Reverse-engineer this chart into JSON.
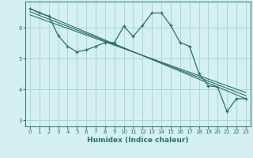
{
  "xlabel": "Humidex (Indice chaleur)",
  "ylabel": "",
  "background_color": "#d4f0f0",
  "grid_color": "#aad8d8",
  "line_color": "#2e6e6e",
  "xlim": [
    -0.5,
    23.5
  ],
  "ylim": [
    2.8,
    6.85
  ],
  "yticks": [
    3,
    4,
    5,
    6
  ],
  "xticks": [
    0,
    1,
    2,
    3,
    4,
    5,
    6,
    7,
    8,
    9,
    10,
    11,
    12,
    13,
    14,
    15,
    16,
    17,
    18,
    19,
    20,
    21,
    22,
    23
  ],
  "xtick_labels": [
    "0",
    "1",
    "2",
    "3",
    "4",
    "5",
    "6",
    "7",
    "8",
    "9",
    "10",
    "11",
    "12",
    "13",
    "14",
    "15",
    "16",
    "17",
    "18",
    "19",
    "20",
    "21",
    "22",
    "23"
  ],
  "curve1_x": [
    0,
    1,
    2,
    3,
    4,
    5,
    6,
    7,
    8,
    9,
    10,
    11,
    12,
    13,
    14,
    15,
    16,
    17,
    18,
    19,
    20,
    21,
    22,
    23
  ],
  "curve1_y": [
    6.62,
    6.48,
    6.38,
    5.75,
    5.4,
    5.22,
    5.28,
    5.4,
    5.52,
    5.52,
    6.05,
    5.72,
    6.08,
    6.48,
    6.48,
    6.08,
    5.52,
    5.4,
    4.52,
    4.12,
    4.08,
    3.28,
    3.7,
    3.7
  ],
  "line1_x": [
    0,
    23
  ],
  "line1_y": [
    6.62,
    3.7
  ],
  "line2_x": [
    0,
    23
  ],
  "line2_y": [
    6.52,
    3.8
  ],
  "line3_x": [
    0,
    23
  ],
  "line3_y": [
    6.42,
    3.9
  ]
}
